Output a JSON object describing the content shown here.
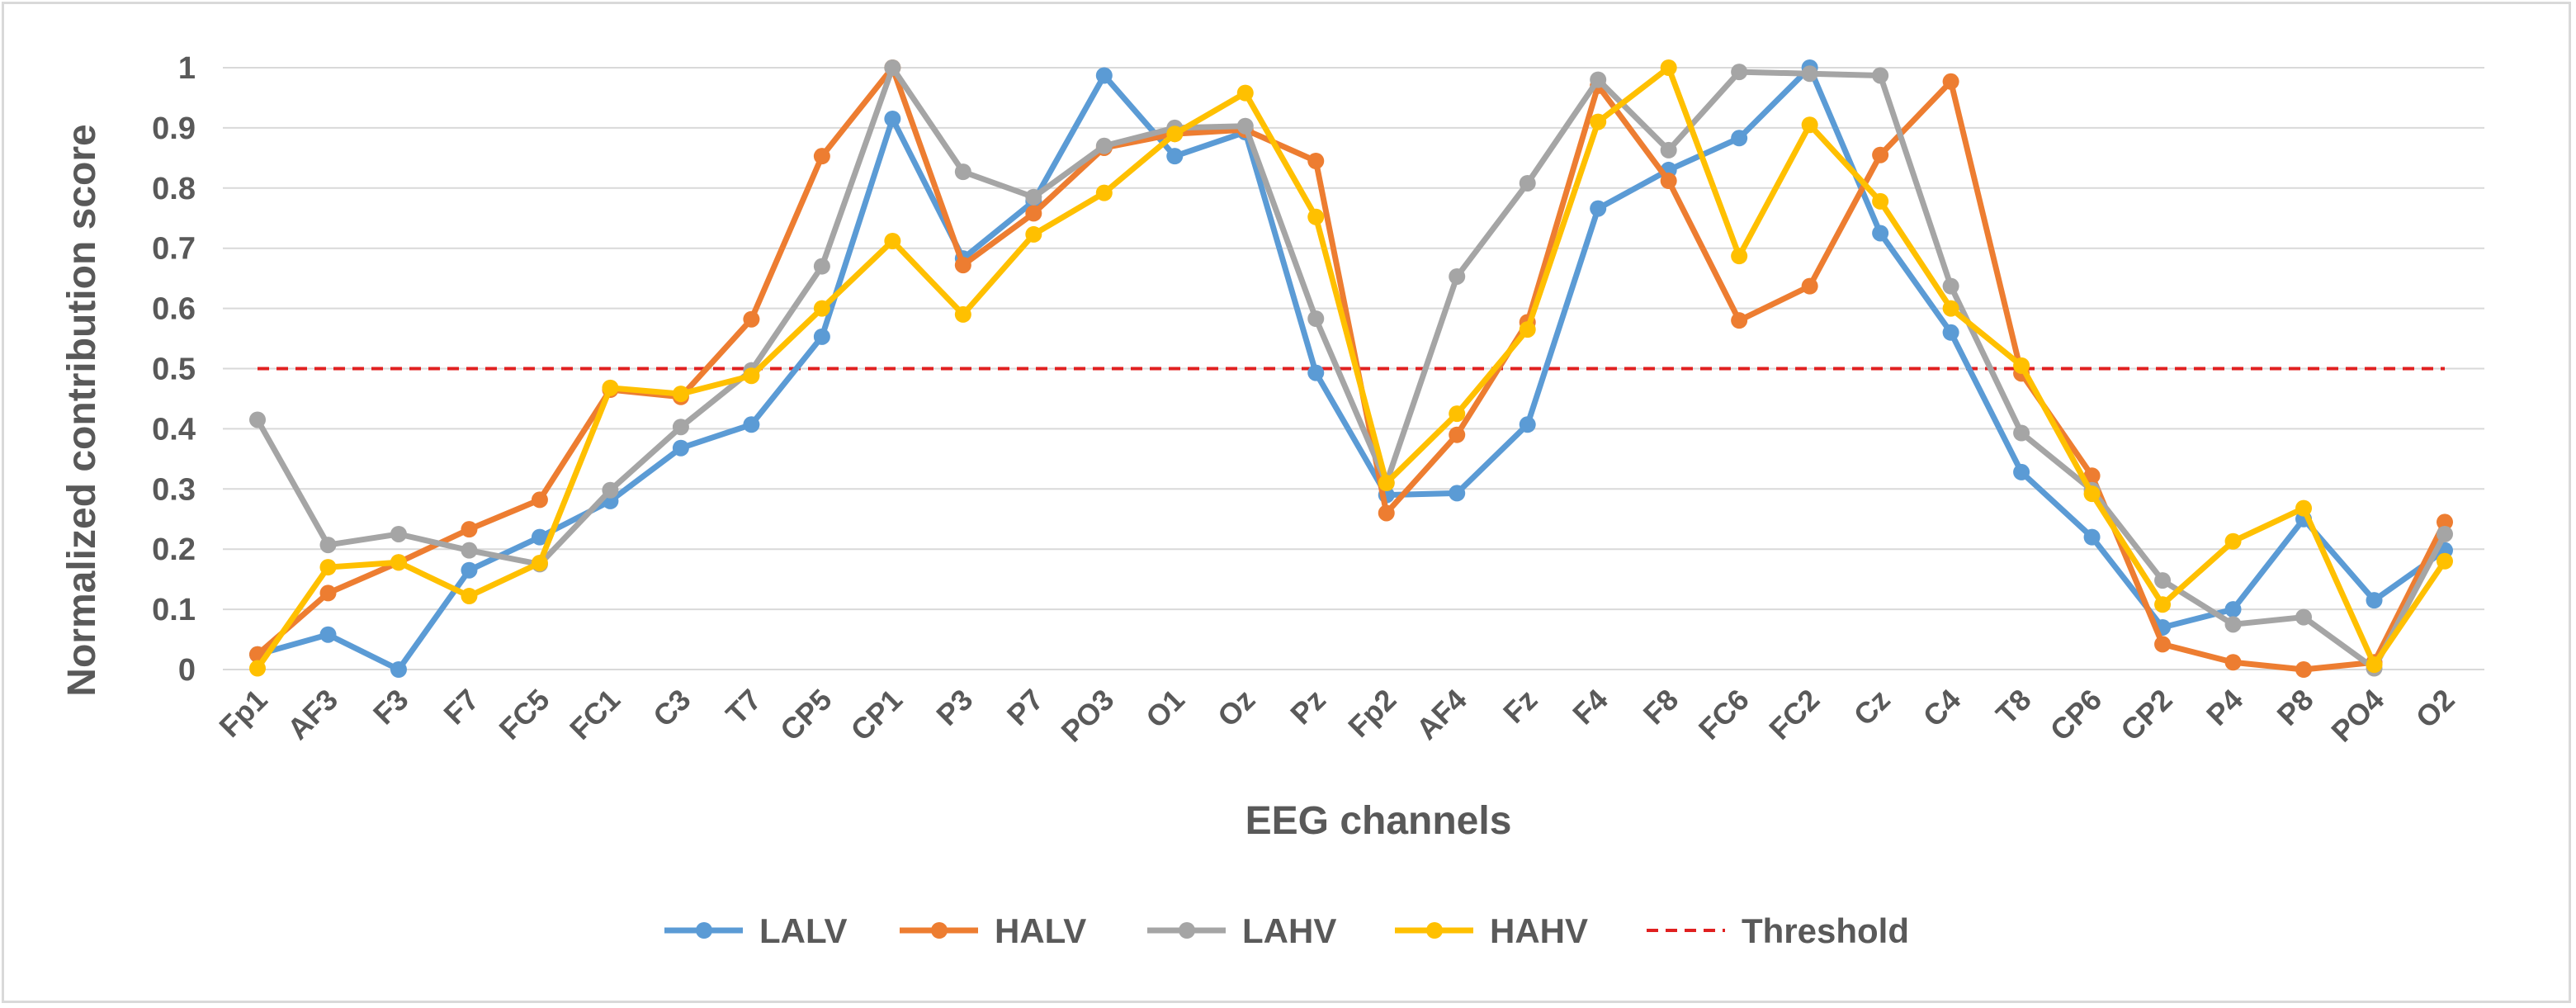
{
  "chart_data": {
    "type": "line",
    "title": "",
    "xlabel": "EEG channels",
    "ylabel": "Normalized contribution score",
    "ylim": [
      0,
      1
    ],
    "yticks": [
      0,
      0.1,
      0.2,
      0.3,
      0.4,
      0.5,
      0.6,
      0.7,
      0.8,
      0.9,
      1
    ],
    "ytick_labels": [
      "0",
      "0.1",
      "0.2",
      "0.3",
      "0.4",
      "0.5",
      "0.6",
      "0.7",
      "0.8",
      "0.9",
      "1"
    ],
    "grid": true,
    "legend_position": "bottom",
    "categories": [
      "Fp1",
      "AF3",
      "F3",
      "F7",
      "FC5",
      "FC1",
      "C3",
      "T7",
      "CP5",
      "CP1",
      "P3",
      "P7",
      "PO3",
      "O1",
      "Oz",
      "Pz",
      "Fp2",
      "AF4",
      "Fz",
      "F4",
      "F8",
      "FC6",
      "FC2",
      "Cz",
      "C4",
      "T8",
      "CP6",
      "CP2",
      "P4",
      "P8",
      "PO4",
      "O2"
    ],
    "series": [
      {
        "name": "LALV",
        "color": "#5b9bd5",
        "values": [
          0.025,
          0.058,
          0.0,
          0.165,
          0.22,
          0.28,
          0.368,
          0.407,
          0.553,
          0.915,
          0.683,
          0.778,
          0.987,
          0.853,
          0.893,
          0.493,
          0.29,
          0.293,
          0.407,
          0.766,
          0.83,
          0.883,
          1.0,
          0.725,
          0.56,
          0.328,
          0.22,
          0.07,
          0.1,
          0.25,
          0.115,
          0.198
        ]
      },
      {
        "name": "HALV",
        "color": "#ed7d31",
        "values": [
          0.025,
          0.127,
          0.178,
          0.233,
          0.282,
          0.465,
          0.453,
          0.582,
          0.853,
          1.0,
          0.672,
          0.758,
          0.867,
          0.89,
          0.897,
          0.845,
          0.26,
          0.39,
          0.577,
          0.97,
          0.812,
          0.58,
          0.637,
          0.855,
          0.977,
          0.492,
          0.322,
          0.042,
          0.012,
          0.0,
          0.012,
          0.245
        ]
      },
      {
        "name": "LAHV",
        "color": "#a5a5a5",
        "values": [
          0.415,
          0.207,
          0.225,
          0.198,
          0.175,
          0.298,
          0.403,
          0.497,
          0.67,
          1.0,
          0.827,
          0.785,
          0.87,
          0.9,
          0.903,
          0.583,
          0.31,
          0.653,
          0.808,
          0.98,
          0.863,
          0.993,
          0.99,
          0.987,
          0.637,
          0.393,
          0.298,
          0.148,
          0.075,
          0.087,
          0.002,
          0.225
        ]
      },
      {
        "name": "HAHV",
        "color": "#ffc000",
        "values": [
          0.002,
          0.17,
          0.178,
          0.122,
          0.177,
          0.468,
          0.458,
          0.488,
          0.6,
          0.712,
          0.59,
          0.723,
          0.792,
          0.89,
          0.958,
          0.752,
          0.31,
          0.425,
          0.565,
          0.91,
          1.0,
          0.687,
          0.905,
          0.778,
          0.6,
          0.505,
          0.292,
          0.108,
          0.213,
          0.268,
          0.008,
          0.18
        ]
      }
    ],
    "threshold": {
      "name": "Threshold",
      "value": 0.5,
      "color": "#e02020",
      "style": "dashed"
    }
  }
}
